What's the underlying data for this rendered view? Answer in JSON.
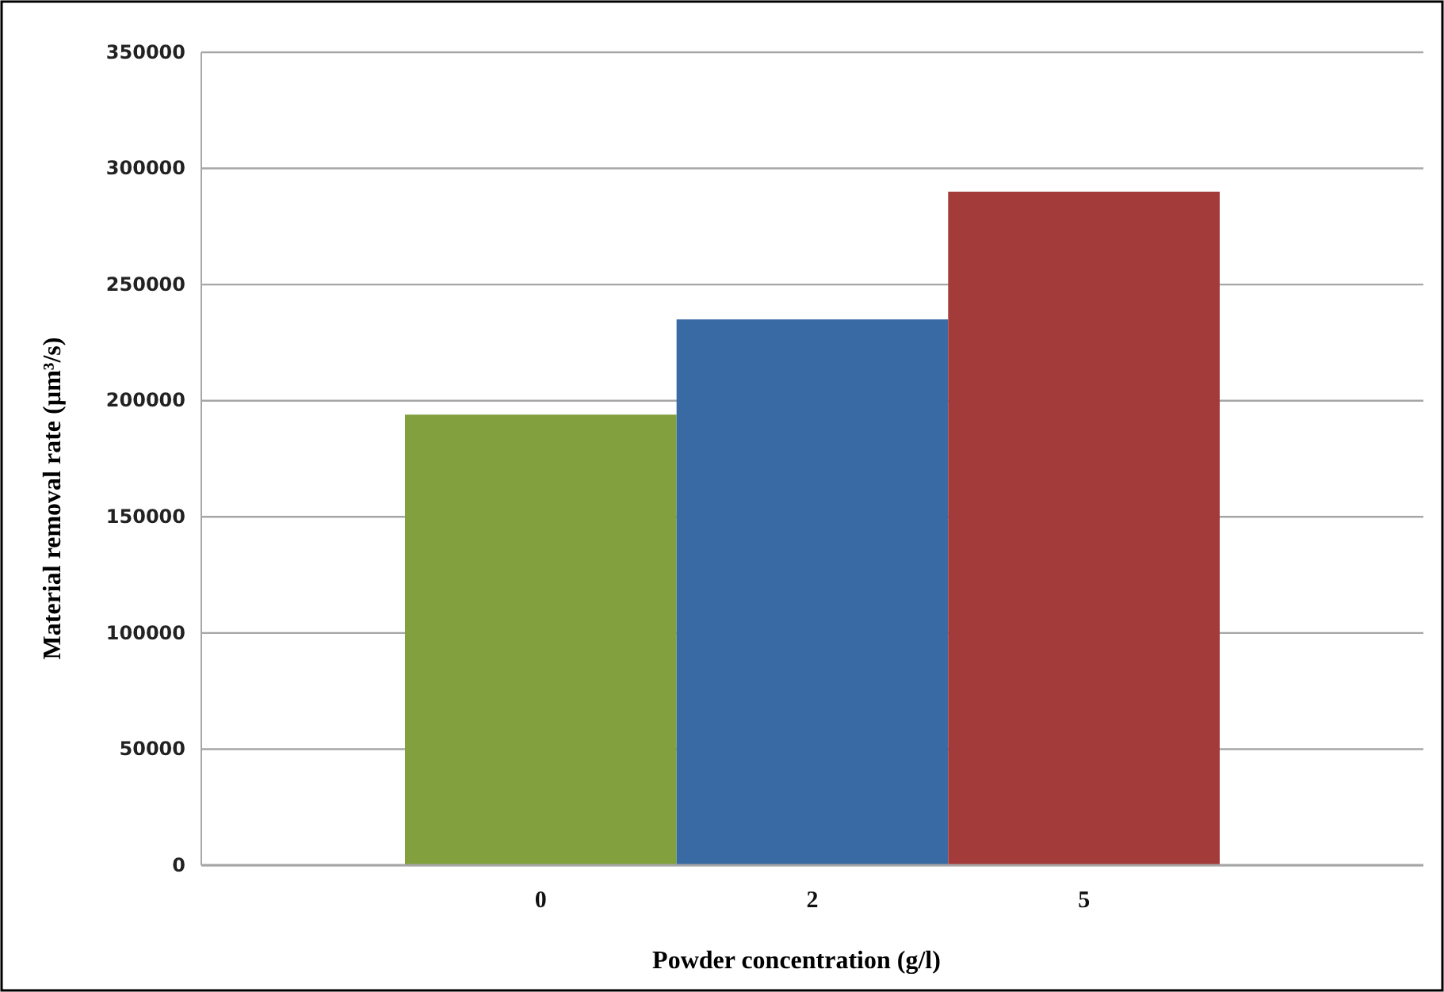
{
  "chart_data": {
    "type": "bar",
    "xlabel": "Powder concentration (g/l)",
    "ylabel": "Material removal rate (µm³/s)",
    "categories": [
      "0",
      "2",
      "5"
    ],
    "values": [
      194000,
      235000,
      290000
    ],
    "colors": [
      "#82a03e",
      "#3a6aa3",
      "#a43b3b"
    ],
    "ylim": [
      0,
      350000
    ],
    "yticks": [
      0,
      50000,
      100000,
      150000,
      200000,
      250000,
      300000,
      350000
    ],
    "grid": "y"
  }
}
